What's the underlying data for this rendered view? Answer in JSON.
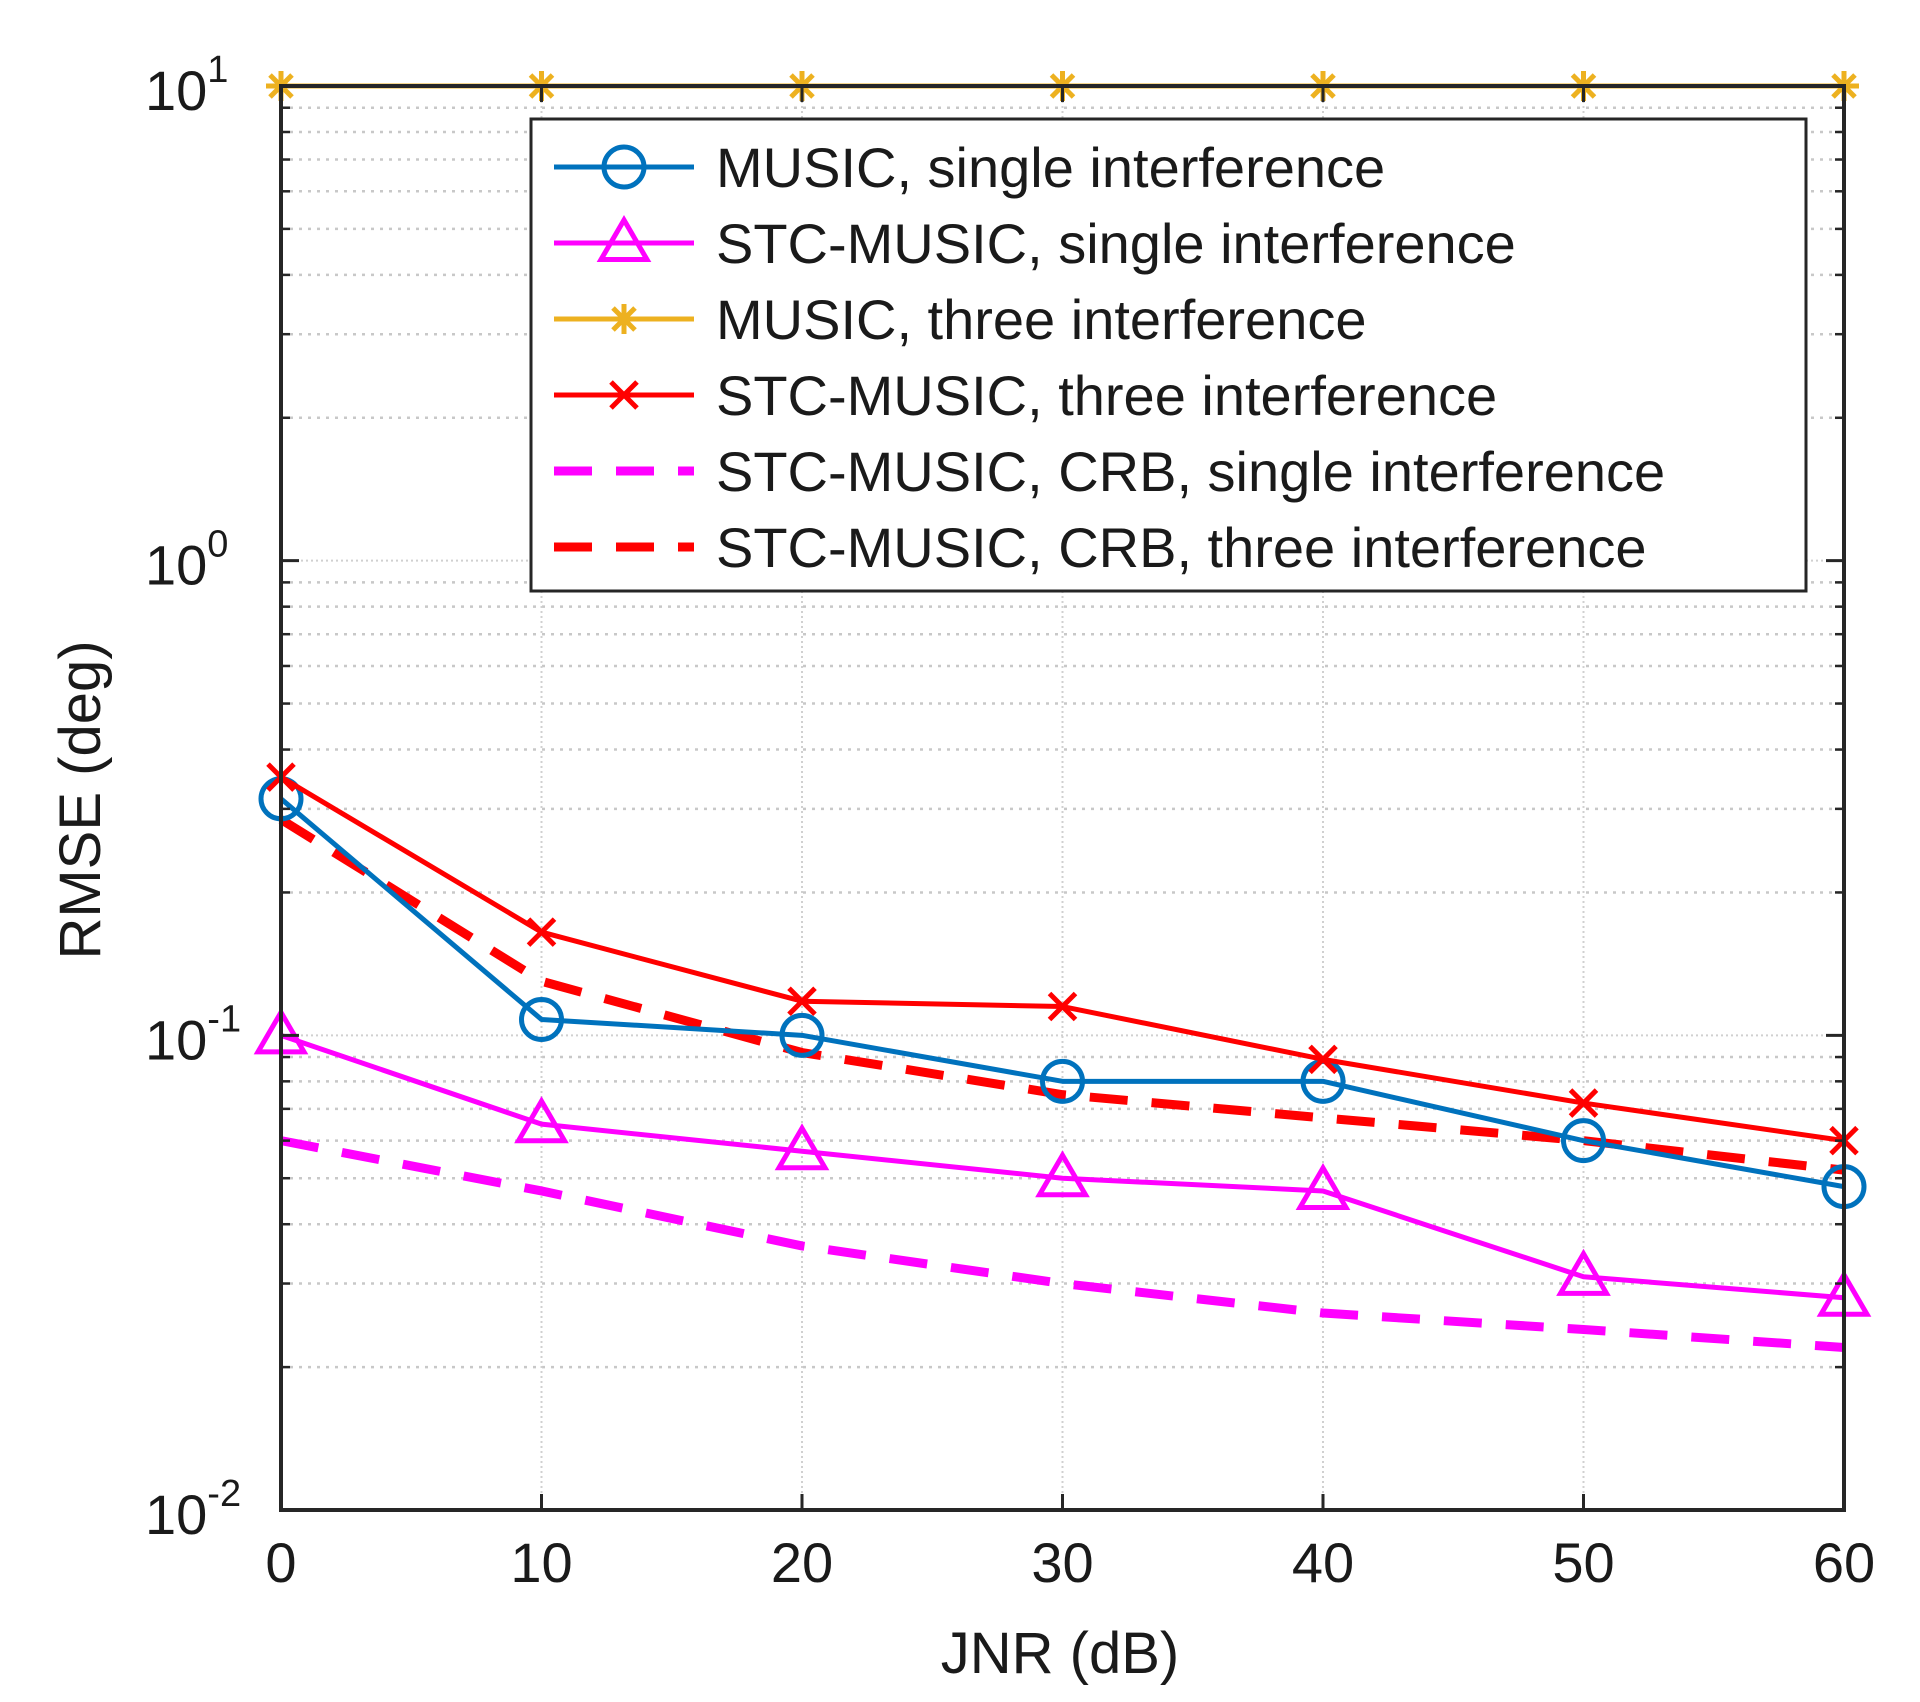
{
  "chart_data": {
    "type": "line",
    "title": "",
    "xlabel": "JNR (dB)",
    "ylabel": "RMSE (deg)",
    "xscale": "linear",
    "yscale": "log",
    "xlim": [
      0,
      60
    ],
    "ylim": [
      0.01,
      10
    ],
    "grid": true,
    "legend_position": "top-right",
    "x": [
      0,
      10,
      20,
      30,
      40,
      50,
      60
    ],
    "x_ticks": [
      {
        "value": 0,
        "label": "0"
      },
      {
        "value": 10,
        "label": "10"
      },
      {
        "value": 20,
        "label": "20"
      },
      {
        "value": 30,
        "label": "30"
      },
      {
        "value": 40,
        "label": "40"
      },
      {
        "value": 50,
        "label": "50"
      },
      {
        "value": 60,
        "label": "60"
      }
    ],
    "y_ticks": [
      {
        "value": 0.01,
        "base": "10",
        "exp": "-2"
      },
      {
        "value": 0.1,
        "base": "10",
        "exp": "-1"
      },
      {
        "value": 1,
        "base": "10",
        "exp": "0"
      },
      {
        "value": 10,
        "base": "10",
        "exp": "1"
      }
    ],
    "series": [
      {
        "name": "MUSIC, single interference",
        "color": "#0072bd",
        "line": "solid",
        "marker": "circle",
        "values": [
          0.315,
          0.108,
          0.1,
          0.08,
          0.08,
          0.06,
          0.048
        ]
      },
      {
        "name": "STC-MUSIC, single interference",
        "color": "#ff00ff",
        "line": "solid",
        "marker": "triangle",
        "values": [
          0.1,
          0.065,
          0.057,
          0.05,
          0.047,
          0.031,
          0.028
        ]
      },
      {
        "name": "MUSIC, three interference",
        "color": "#edb120",
        "line": "solid",
        "marker": "star",
        "values": [
          10,
          10,
          10,
          10,
          10,
          10,
          10
        ]
      },
      {
        "name": "STC-MUSIC, three interference",
        "color": "#ff0000",
        "line": "solid",
        "marker": "x",
        "values": [
          0.35,
          0.165,
          0.118,
          0.115,
          0.089,
          0.072,
          0.06
        ]
      },
      {
        "name": "STC-MUSIC, CRB, single interference",
        "color": "#ff00ff",
        "line": "dashed",
        "marker": "none",
        "values": [
          0.06,
          0.047,
          0.036,
          0.03,
          0.026,
          0.024,
          0.022
        ]
      },
      {
        "name": "STC-MUSIC, CRB, three interference",
        "color": "#ff0000",
        "line": "dashed",
        "marker": "none",
        "values": [
          0.285,
          0.13,
          0.092,
          0.075,
          0.067,
          0.06,
          0.052
        ]
      }
    ]
  }
}
